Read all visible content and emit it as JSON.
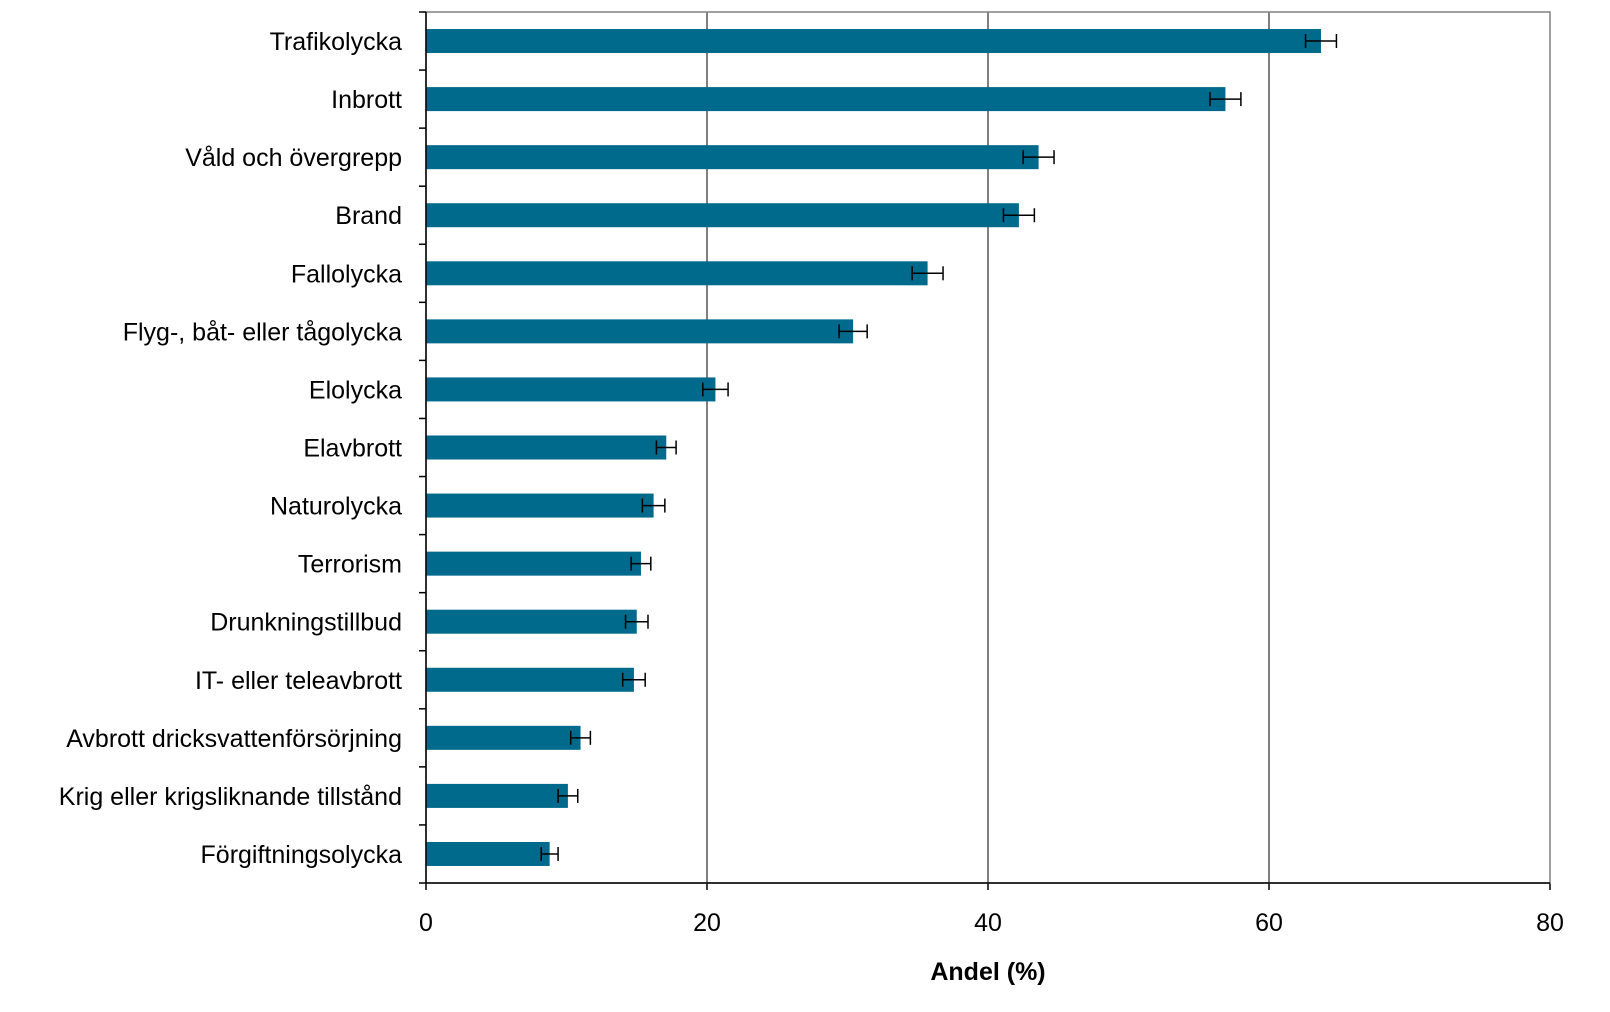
{
  "chart_data": {
    "type": "bar",
    "orientation": "horizontal",
    "title": "",
    "xlabel": "Andel (%)",
    "ylabel": "",
    "xlim": [
      0,
      80
    ],
    "xticks": [
      "0",
      "20",
      "40",
      "60",
      "80"
    ],
    "grid": "vertical",
    "legend": "none",
    "bar_color": "#006a8c",
    "categories": [
      "Trafikolycka",
      "Inbrott",
      "Våld och övergrepp",
      "Brand",
      "Fallolycka",
      "Flyg-, båt- eller tågolycka",
      "Elolycka",
      "Elavbrott",
      "Naturolycka",
      "Terrorism",
      "Drunkningstillbud",
      "IT- eller teleavbrott",
      "Avbrott dricksvattenförsörjning",
      "Krig eller krigsliknande tillstånd",
      "Förgiftningsolycka"
    ],
    "values": [
      63.7,
      56.9,
      43.6,
      42.2,
      35.7,
      30.4,
      20.6,
      17.1,
      16.2,
      15.3,
      15.0,
      14.8,
      11.0,
      10.1,
      8.8
    ],
    "error_low": [
      62.6,
      55.8,
      42.5,
      41.1,
      34.6,
      29.4,
      19.7,
      16.4,
      15.4,
      14.6,
      14.2,
      14.0,
      10.3,
      9.4,
      8.2
    ],
    "error_high": [
      64.8,
      58.0,
      44.7,
      43.3,
      36.8,
      31.4,
      21.5,
      17.8,
      17.0,
      16.0,
      15.8,
      15.6,
      11.7,
      10.8,
      9.4
    ]
  }
}
